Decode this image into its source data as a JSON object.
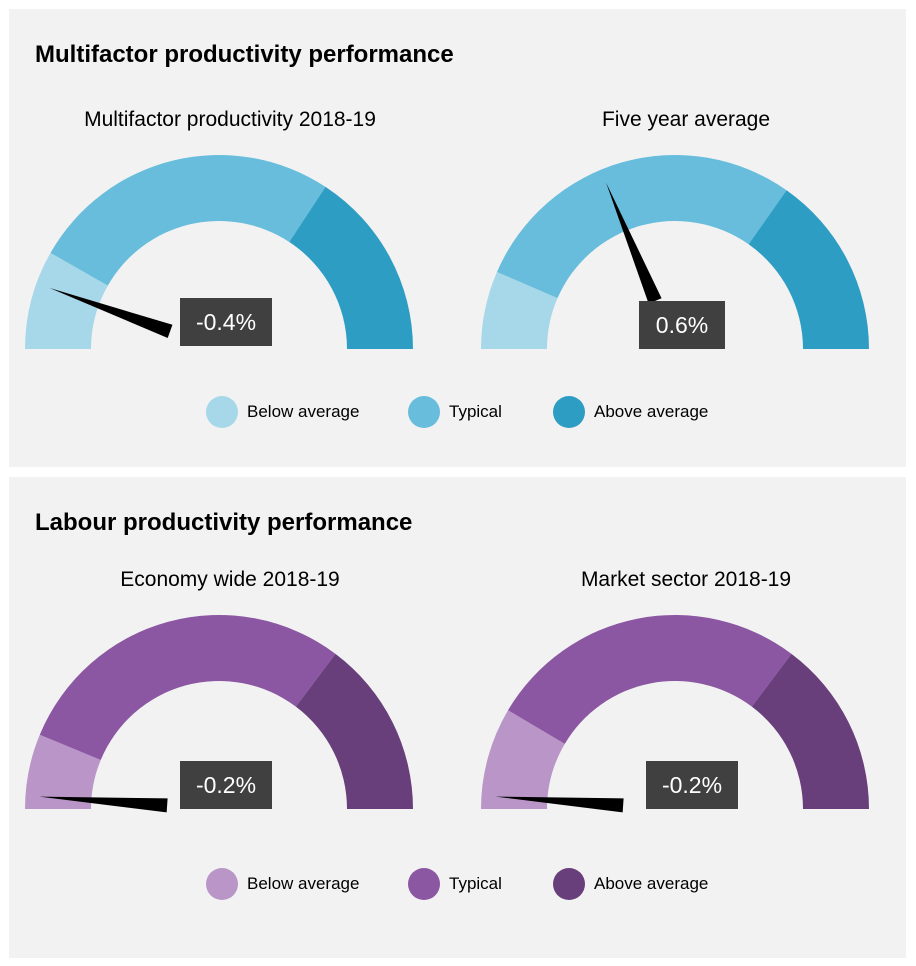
{
  "panels": [
    {
      "title": "Multifactor productivity performance",
      "colors": {
        "below": "#a6d8ea",
        "typical": "#67bddb",
        "above": "#2e9dc4"
      },
      "legend": [
        "Below average",
        "Typical",
        "Above average"
      ],
      "gauges": [
        {
          "title": "Multifactor productivity 2018-19",
          "value_label": "-0.4%",
          "needle_fraction": 0.11,
          "bands": [
            0.0,
            0.165,
            0.685,
            1.0
          ]
        },
        {
          "title": "Five year average",
          "value_label": "0.6%",
          "needle_fraction": 0.375,
          "bands": [
            0.0,
            0.13,
            0.695,
            1.0
          ]
        }
      ]
    },
    {
      "title": "Labour productivity performance",
      "colors": {
        "below": "#ba96c8",
        "typical": "#8b56a2",
        "above": "#683f7b"
      },
      "legend": [
        "Below average",
        "Typical",
        "Above average"
      ],
      "gauges": [
        {
          "title": "Economy wide 2018-19",
          "value_label": "-0.2%",
          "needle_fraction": 0.022,
          "bands": [
            0.0,
            0.125,
            0.705,
            1.0
          ]
        },
        {
          "title": "Market sector 2018-19",
          "value_label": "-0.2%",
          "needle_fraction": 0.022,
          "bands": [
            0.0,
            0.17,
            0.705,
            1.0
          ]
        }
      ]
    }
  ],
  "chart_data": [
    {
      "type": "gauge",
      "title": "Multifactor productivity performance",
      "legend": [
        "Below average",
        "Typical",
        "Above average"
      ],
      "gauges": [
        {
          "subtitle": "Multifactor productivity 2018-19",
          "value": -0.4,
          "unit": "%",
          "zones": [
            "Below average",
            "Typical",
            "Above average"
          ]
        },
        {
          "subtitle": "Five year average",
          "value": 0.6,
          "unit": "%",
          "zones": [
            "Below average",
            "Typical",
            "Above average"
          ]
        }
      ]
    },
    {
      "type": "gauge",
      "title": "Labour productivity performance",
      "legend": [
        "Below average",
        "Typical",
        "Above average"
      ],
      "gauges": [
        {
          "subtitle": "Economy wide 2018-19",
          "value": -0.2,
          "unit": "%",
          "zones": [
            "Below average",
            "Typical",
            "Above average"
          ]
        },
        {
          "subtitle": "Market sector 2018-19",
          "value": -0.2,
          "unit": "%",
          "zones": [
            "Below average",
            "Typical",
            "Above average"
          ]
        }
      ]
    }
  ]
}
